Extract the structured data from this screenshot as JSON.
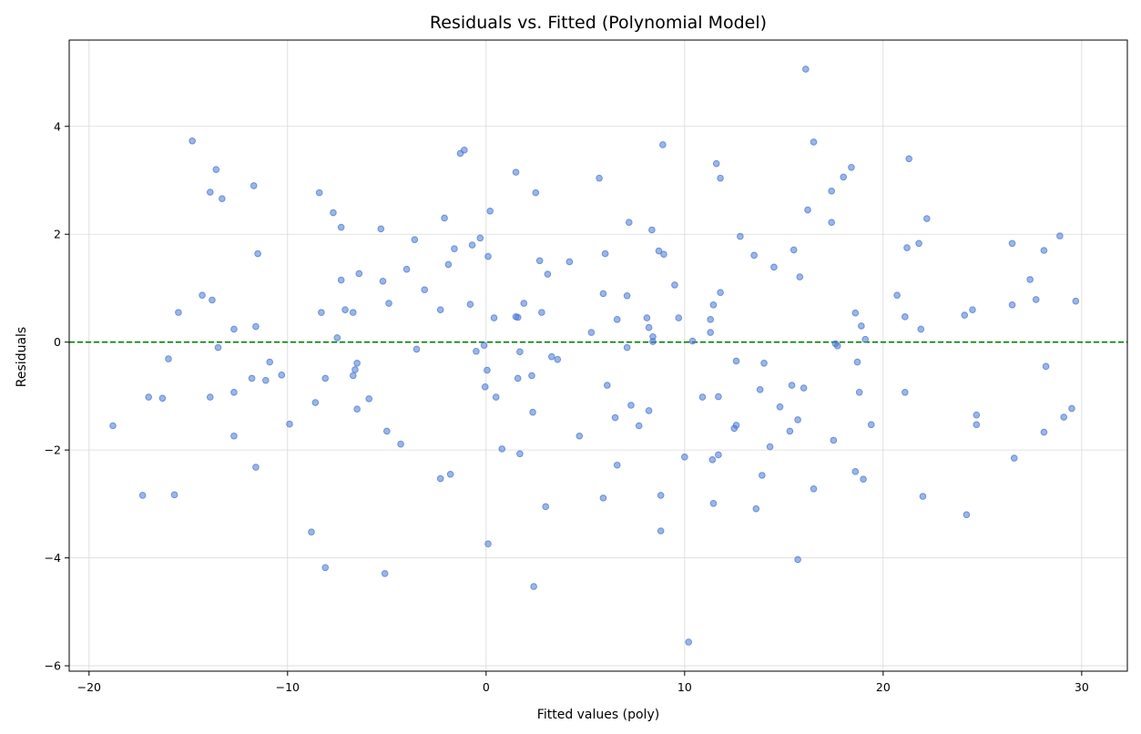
{
  "chart_data": {
    "type": "scatter",
    "title": "Residuals vs. Fitted (Polynomial Model)",
    "xlabel": "Fitted values (poly)",
    "ylabel": "Residuals",
    "xlim": [
      -21,
      32.3
    ],
    "ylim": [
      -6.1,
      5.6
    ],
    "xticks": [
      -20,
      -10,
      0,
      10,
      20,
      30
    ],
    "yticks": [
      -6,
      -4,
      -2,
      0,
      2,
      4
    ],
    "xtick_labels": [
      "−20",
      "−10",
      "0",
      "10",
      "20",
      "30"
    ],
    "ytick_labels": [
      "−6",
      "−4",
      "−2",
      "0",
      "2",
      "4"
    ],
    "grid": true,
    "reference_line": {
      "y": 0,
      "style": "dashed",
      "color": "#008000"
    },
    "point_color": "#4a78d4",
    "series": [
      {
        "points": [
          [
            -18.8,
            -1.55
          ],
          [
            -17.3,
            -2.84
          ],
          [
            -17.0,
            -1.02
          ],
          [
            -16.3,
            -1.04
          ],
          [
            -16.0,
            -0.31
          ],
          [
            -15.7,
            -2.83
          ],
          [
            -15.5,
            0.55
          ],
          [
            -14.8,
            3.73
          ],
          [
            -14.3,
            0.87
          ],
          [
            -13.9,
            2.78
          ],
          [
            -13.9,
            -1.02
          ],
          [
            -13.8,
            0.78
          ],
          [
            -13.6,
            3.2
          ],
          [
            -13.5,
            -0.1
          ],
          [
            -13.3,
            2.66
          ],
          [
            -12.7,
            0.24
          ],
          [
            -12.7,
            -0.93
          ],
          [
            -12.7,
            -1.74
          ],
          [
            -11.8,
            -0.67
          ],
          [
            -11.7,
            2.9
          ],
          [
            -11.6,
            0.29
          ],
          [
            -11.6,
            -2.32
          ],
          [
            -11.5,
            1.64
          ],
          [
            -11.1,
            -0.71
          ],
          [
            -10.9,
            -0.37
          ],
          [
            -10.3,
            -0.61
          ],
          [
            -9.9,
            -1.52
          ],
          [
            -8.8,
            -3.52
          ],
          [
            -8.6,
            -1.12
          ],
          [
            -8.4,
            2.77
          ],
          [
            -8.3,
            0.55
          ],
          [
            -8.1,
            -0.67
          ],
          [
            -8.1,
            -4.18
          ],
          [
            -7.7,
            2.4
          ],
          [
            -7.5,
            0.08
          ],
          [
            -7.3,
            2.13
          ],
          [
            -7.3,
            1.15
          ],
          [
            -7.1,
            0.6
          ],
          [
            -6.7,
            0.55
          ],
          [
            -6.7,
            -0.62
          ],
          [
            -6.6,
            -0.51
          ],
          [
            -6.5,
            -0.39
          ],
          [
            -6.5,
            -1.24
          ],
          [
            -6.4,
            1.27
          ],
          [
            -5.9,
            -1.05
          ],
          [
            -5.3,
            2.1
          ],
          [
            -5.2,
            1.13
          ],
          [
            -5.1,
            -4.29
          ],
          [
            -5.0,
            -1.65
          ],
          [
            -4.9,
            0.72
          ],
          [
            -4.3,
            -1.89
          ],
          [
            -4.0,
            1.35
          ],
          [
            -3.6,
            1.9
          ],
          [
            -3.5,
            -0.13
          ],
          [
            -3.1,
            0.97
          ],
          [
            -2.3,
            -2.53
          ],
          [
            -2.3,
            0.6
          ],
          [
            -2.1,
            2.3
          ],
          [
            -1.9,
            1.44
          ],
          [
            -1.8,
            -2.45
          ],
          [
            -1.6,
            1.73
          ],
          [
            -1.3,
            3.5
          ],
          [
            -1.1,
            3.56
          ],
          [
            -0.8,
            0.7
          ],
          [
            -0.7,
            1.8
          ],
          [
            -0.5,
            -0.17
          ],
          [
            -0.3,
            1.93
          ],
          [
            -0.1,
            -0.06
          ],
          [
            -0.05,
            -0.83
          ],
          [
            0.05,
            -0.52
          ],
          [
            0.1,
            -3.74
          ],
          [
            0.1,
            1.59
          ],
          [
            0.2,
            2.43
          ],
          [
            0.4,
            0.45
          ],
          [
            0.5,
            -1.02
          ],
          [
            0.8,
            -1.98
          ],
          [
            1.5,
            0.47
          ],
          [
            1.5,
            3.15
          ],
          [
            1.6,
            -0.67
          ],
          [
            1.6,
            0.46
          ],
          [
            1.7,
            -0.18
          ],
          [
            1.7,
            -2.07
          ],
          [
            1.9,
            0.72
          ],
          [
            2.3,
            -0.62
          ],
          [
            2.35,
            -1.3
          ],
          [
            2.4,
            -4.53
          ],
          [
            2.5,
            2.77
          ],
          [
            2.7,
            1.51
          ],
          [
            2.8,
            0.55
          ],
          [
            3.0,
            -3.05
          ],
          [
            3.1,
            1.26
          ],
          [
            3.3,
            -0.27
          ],
          [
            3.6,
            -0.32
          ],
          [
            4.2,
            1.49
          ],
          [
            4.7,
            -1.74
          ],
          [
            5.3,
            0.18
          ],
          [
            5.7,
            3.04
          ],
          [
            5.9,
            0.9
          ],
          [
            5.9,
            -2.89
          ],
          [
            6.0,
            1.64
          ],
          [
            6.1,
            -0.8
          ],
          [
            6.5,
            -1.4
          ],
          [
            6.6,
            -2.28
          ],
          [
            6.6,
            0.42
          ],
          [
            7.1,
            -0.1
          ],
          [
            7.1,
            0.86
          ],
          [
            7.2,
            2.22
          ],
          [
            7.3,
            -1.17
          ],
          [
            7.7,
            -1.55
          ],
          [
            8.1,
            0.45
          ],
          [
            8.2,
            0.27
          ],
          [
            8.2,
            -1.27
          ],
          [
            8.35,
            2.08
          ],
          [
            8.4,
            0.1
          ],
          [
            8.4,
            0.01
          ],
          [
            8.7,
            1.69
          ],
          [
            8.8,
            -2.84
          ],
          [
            8.8,
            -3.5
          ],
          [
            8.9,
            3.66
          ],
          [
            8.95,
            1.63
          ],
          [
            9.5,
            1.06
          ],
          [
            9.7,
            0.45
          ],
          [
            10.0,
            -2.13
          ],
          [
            10.2,
            -5.56
          ],
          [
            10.4,
            0.02
          ],
          [
            10.9,
            -1.02
          ],
          [
            11.3,
            0.18
          ],
          [
            11.3,
            0.42
          ],
          [
            11.4,
            -2.18
          ],
          [
            11.45,
            0.69
          ],
          [
            11.45,
            -2.99
          ],
          [
            11.6,
            3.31
          ],
          [
            11.7,
            -1.01
          ],
          [
            11.7,
            -2.09
          ],
          [
            11.8,
            3.04
          ],
          [
            11.8,
            0.92
          ],
          [
            12.5,
            -1.6
          ],
          [
            12.6,
            -1.54
          ],
          [
            12.6,
            -0.35
          ],
          [
            12.8,
            1.96
          ],
          [
            13.5,
            1.61
          ],
          [
            13.6,
            -3.09
          ],
          [
            13.8,
            -0.88
          ],
          [
            13.9,
            -2.47
          ],
          [
            14.0,
            -0.39
          ],
          [
            14.3,
            -1.94
          ],
          [
            14.5,
            1.39
          ],
          [
            14.8,
            -1.2
          ],
          [
            15.3,
            -1.65
          ],
          [
            15.4,
            -0.8
          ],
          [
            15.5,
            1.71
          ],
          [
            15.7,
            -1.44
          ],
          [
            15.7,
            -4.03
          ],
          [
            15.8,
            1.21
          ],
          [
            16.0,
            -0.85
          ],
          [
            16.1,
            5.06
          ],
          [
            16.2,
            2.45
          ],
          [
            16.5,
            3.71
          ],
          [
            16.5,
            -2.72
          ],
          [
            17.4,
            2.8
          ],
          [
            17.4,
            2.22
          ],
          [
            17.5,
            -1.82
          ],
          [
            17.6,
            -0.03
          ],
          [
            17.7,
            -0.07
          ],
          [
            18.0,
            3.06
          ],
          [
            18.4,
            3.24
          ],
          [
            18.6,
            -2.4
          ],
          [
            18.6,
            0.54
          ],
          [
            18.7,
            -0.37
          ],
          [
            18.8,
            -0.93
          ],
          [
            18.9,
            0.3
          ],
          [
            19.0,
            -2.54
          ],
          [
            19.1,
            0.05
          ],
          [
            19.4,
            -1.53
          ],
          [
            20.7,
            0.87
          ],
          [
            21.1,
            -0.93
          ],
          [
            21.1,
            0.47
          ],
          [
            21.2,
            1.75
          ],
          [
            21.3,
            3.4
          ],
          [
            21.8,
            1.83
          ],
          [
            21.9,
            0.24
          ],
          [
            22.0,
            -2.86
          ],
          [
            22.2,
            2.29
          ],
          [
            24.1,
            0.5
          ],
          [
            24.2,
            -3.2
          ],
          [
            24.5,
            0.6
          ],
          [
            24.7,
            -1.35
          ],
          [
            24.7,
            -1.53
          ],
          [
            26.5,
            1.83
          ],
          [
            26.5,
            0.69
          ],
          [
            26.6,
            -2.15
          ],
          [
            27.4,
            1.16
          ],
          [
            27.7,
            0.79
          ],
          [
            28.1,
            1.7
          ],
          [
            28.1,
            -1.67
          ],
          [
            28.2,
            -0.45
          ],
          [
            28.9,
            1.97
          ],
          [
            29.1,
            -1.39
          ],
          [
            29.5,
            -1.23
          ],
          [
            29.7,
            0.76
          ]
        ]
      }
    ]
  }
}
